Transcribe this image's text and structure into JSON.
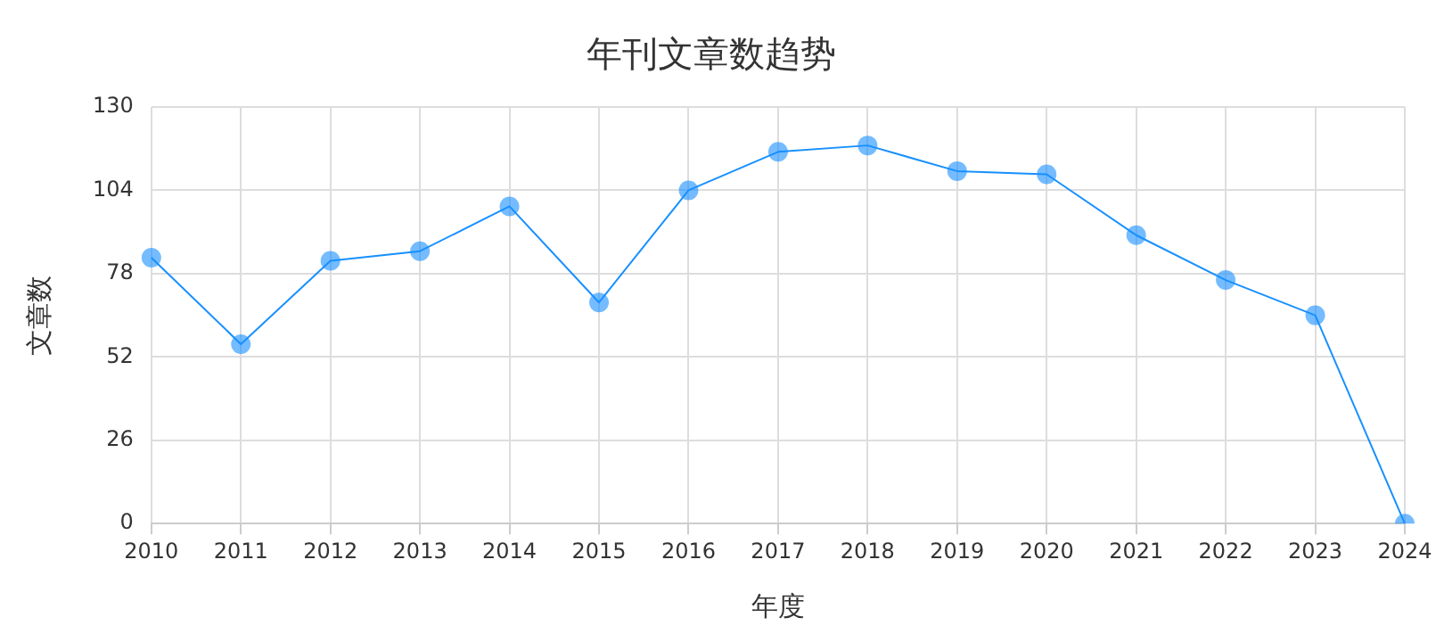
{
  "chart_data": {
    "type": "line",
    "title": "年刊文章数趋势",
    "xlabel": "年度",
    "ylabel": "文章数",
    "categories": [
      "2010",
      "2011",
      "2012",
      "2013",
      "2014",
      "2015",
      "2016",
      "2017",
      "2018",
      "2019",
      "2020",
      "2021",
      "2022",
      "2023",
      "2024"
    ],
    "series": [
      {
        "color": "#1890ff",
        "values": [
          83,
          56,
          82,
          85,
          99,
          69,
          104,
          116,
          118,
          110,
          109,
          90,
          76,
          65,
          0
        ]
      }
    ],
    "ylim": [
      0,
      130
    ],
    "yticks": [
      0,
      26,
      52,
      78,
      104,
      130
    ],
    "grid": true,
    "legend": false,
    "marker": "circle",
    "line_style": "solid"
  }
}
